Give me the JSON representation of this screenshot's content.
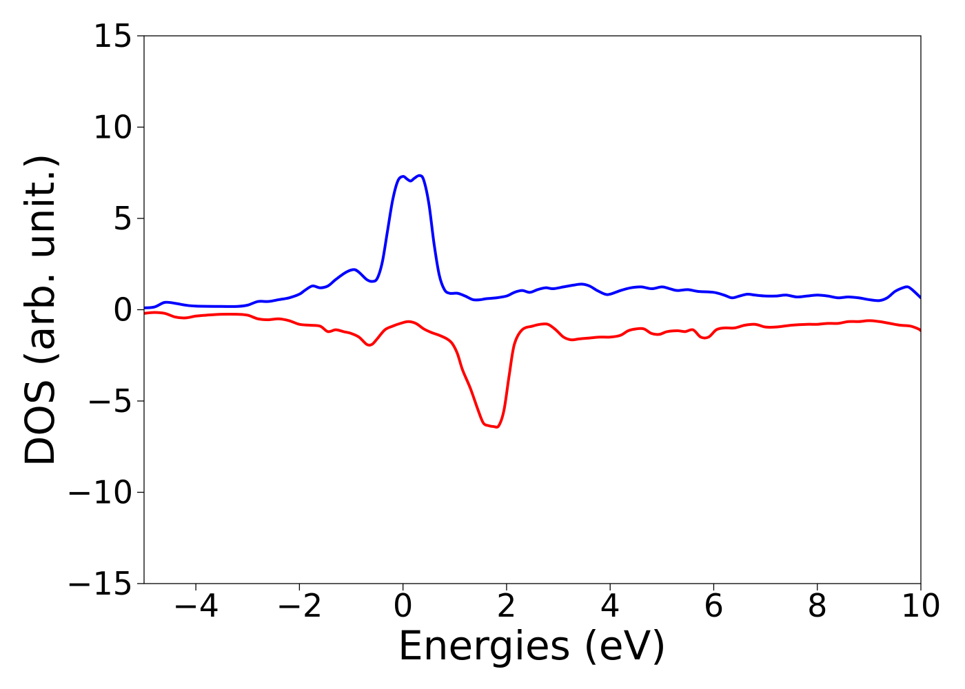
{
  "chart_data": {
    "type": "line",
    "title": "",
    "xlabel": "Energies (eV)",
    "ylabel": "DOS (arb. unit.)",
    "xlim": [
      -5,
      10
    ],
    "ylim": [
      -15,
      15
    ],
    "grid": false,
    "legend": "none",
    "x_ticks": [
      -4,
      -2,
      0,
      2,
      4,
      6,
      8,
      10
    ],
    "y_ticks": [
      -15,
      -10,
      -5,
      0,
      5,
      10,
      15
    ],
    "series": [
      {
        "color": "#0000ff",
        "points": [
          [
            -5.0,
            0.1
          ],
          [
            -4.8,
            0.15
          ],
          [
            -4.6,
            0.4
          ],
          [
            -4.4,
            0.35
          ],
          [
            -4.2,
            0.25
          ],
          [
            -4.0,
            0.2
          ],
          [
            -3.5,
            0.18
          ],
          [
            -3.2,
            0.18
          ],
          [
            -3.0,
            0.25
          ],
          [
            -2.8,
            0.45
          ],
          [
            -2.6,
            0.45
          ],
          [
            -2.4,
            0.55
          ],
          [
            -2.2,
            0.65
          ],
          [
            -2.0,
            0.85
          ],
          [
            -1.9,
            1.05
          ],
          [
            -1.75,
            1.3
          ],
          [
            -1.6,
            1.2
          ],
          [
            -1.45,
            1.3
          ],
          [
            -1.3,
            1.65
          ],
          [
            -1.1,
            2.05
          ],
          [
            -0.95,
            2.2
          ],
          [
            -0.85,
            2.05
          ],
          [
            -0.7,
            1.65
          ],
          [
            -0.6,
            1.55
          ],
          [
            -0.5,
            1.7
          ],
          [
            -0.4,
            2.6
          ],
          [
            -0.3,
            4.3
          ],
          [
            -0.2,
            6.0
          ],
          [
            -0.1,
            7.05
          ],
          [
            0.0,
            7.3
          ],
          [
            0.08,
            7.15
          ],
          [
            0.15,
            7.05
          ],
          [
            0.22,
            7.2
          ],
          [
            0.32,
            7.35
          ],
          [
            0.4,
            7.1
          ],
          [
            0.5,
            5.8
          ],
          [
            0.6,
            3.6
          ],
          [
            0.7,
            1.9
          ],
          [
            0.8,
            1.1
          ],
          [
            0.9,
            0.9
          ],
          [
            1.05,
            0.9
          ],
          [
            1.2,
            0.75
          ],
          [
            1.35,
            0.55
          ],
          [
            1.5,
            0.55
          ],
          [
            1.6,
            0.6
          ],
          [
            1.8,
            0.65
          ],
          [
            2.0,
            0.75
          ],
          [
            2.15,
            0.95
          ],
          [
            2.3,
            1.05
          ],
          [
            2.45,
            0.95
          ],
          [
            2.6,
            1.1
          ],
          [
            2.75,
            1.2
          ],
          [
            2.9,
            1.15
          ],
          [
            3.1,
            1.25
          ],
          [
            3.3,
            1.35
          ],
          [
            3.45,
            1.4
          ],
          [
            3.6,
            1.3
          ],
          [
            3.75,
            1.05
          ],
          [
            3.9,
            0.85
          ],
          [
            4.0,
            0.85
          ],
          [
            4.2,
            1.05
          ],
          [
            4.4,
            1.2
          ],
          [
            4.6,
            1.25
          ],
          [
            4.8,
            1.15
          ],
          [
            5.0,
            1.25
          ],
          [
            5.15,
            1.15
          ],
          [
            5.3,
            1.05
          ],
          [
            5.5,
            1.1
          ],
          [
            5.7,
            1.0
          ],
          [
            6.0,
            0.95
          ],
          [
            6.2,
            0.8
          ],
          [
            6.35,
            0.65
          ],
          [
            6.5,
            0.75
          ],
          [
            6.65,
            0.85
          ],
          [
            6.8,
            0.8
          ],
          [
            7.0,
            0.75
          ],
          [
            7.2,
            0.75
          ],
          [
            7.4,
            0.8
          ],
          [
            7.6,
            0.7
          ],
          [
            7.8,
            0.75
          ],
          [
            8.0,
            0.8
          ],
          [
            8.2,
            0.75
          ],
          [
            8.4,
            0.65
          ],
          [
            8.6,
            0.7
          ],
          [
            8.8,
            0.65
          ],
          [
            9.0,
            0.55
          ],
          [
            9.2,
            0.5
          ],
          [
            9.35,
            0.65
          ],
          [
            9.5,
            1.0
          ],
          [
            9.65,
            1.2
          ],
          [
            9.75,
            1.25
          ],
          [
            9.85,
            1.05
          ],
          [
            10.0,
            0.65
          ]
        ]
      },
      {
        "color": "#ff0000",
        "points": [
          [
            -5.0,
            -0.2
          ],
          [
            -4.8,
            -0.15
          ],
          [
            -4.6,
            -0.2
          ],
          [
            -4.4,
            -0.4
          ],
          [
            -4.2,
            -0.45
          ],
          [
            -4.0,
            -0.35
          ],
          [
            -3.8,
            -0.3
          ],
          [
            -3.5,
            -0.25
          ],
          [
            -3.2,
            -0.25
          ],
          [
            -3.0,
            -0.3
          ],
          [
            -2.8,
            -0.5
          ],
          [
            -2.6,
            -0.55
          ],
          [
            -2.4,
            -0.5
          ],
          [
            -2.2,
            -0.6
          ],
          [
            -2.0,
            -0.8
          ],
          [
            -1.8,
            -0.85
          ],
          [
            -1.6,
            -0.9
          ],
          [
            -1.45,
            -1.2
          ],
          [
            -1.3,
            -1.1
          ],
          [
            -1.15,
            -1.2
          ],
          [
            -1.0,
            -1.3
          ],
          [
            -0.85,
            -1.5
          ],
          [
            -0.7,
            -1.9
          ],
          [
            -0.6,
            -1.9
          ],
          [
            -0.5,
            -1.6
          ],
          [
            -0.35,
            -1.1
          ],
          [
            -0.2,
            -0.9
          ],
          [
            -0.05,
            -0.75
          ],
          [
            0.1,
            -0.65
          ],
          [
            0.25,
            -0.75
          ],
          [
            0.4,
            -1.05
          ],
          [
            0.55,
            -1.25
          ],
          [
            0.7,
            -1.4
          ],
          [
            0.85,
            -1.6
          ],
          [
            0.95,
            -1.85
          ],
          [
            1.05,
            -2.4
          ],
          [
            1.15,
            -3.3
          ],
          [
            1.3,
            -4.3
          ],
          [
            1.45,
            -5.5
          ],
          [
            1.55,
            -6.2
          ],
          [
            1.65,
            -6.35
          ],
          [
            1.75,
            -6.4
          ],
          [
            1.85,
            -6.35
          ],
          [
            1.95,
            -5.5
          ],
          [
            2.05,
            -3.6
          ],
          [
            2.15,
            -1.9
          ],
          [
            2.3,
            -1.1
          ],
          [
            2.5,
            -0.9
          ],
          [
            2.65,
            -0.8
          ],
          [
            2.8,
            -0.8
          ],
          [
            2.95,
            -1.1
          ],
          [
            3.1,
            -1.5
          ],
          [
            3.25,
            -1.65
          ],
          [
            3.4,
            -1.6
          ],
          [
            3.6,
            -1.55
          ],
          [
            3.8,
            -1.5
          ],
          [
            4.0,
            -1.5
          ],
          [
            4.2,
            -1.4
          ],
          [
            4.35,
            -1.15
          ],
          [
            4.5,
            -1.05
          ],
          [
            4.65,
            -1.05
          ],
          [
            4.8,
            -1.3
          ],
          [
            4.95,
            -1.35
          ],
          [
            5.1,
            -1.2
          ],
          [
            5.3,
            -1.15
          ],
          [
            5.45,
            -1.2
          ],
          [
            5.6,
            -1.1
          ],
          [
            5.75,
            -1.5
          ],
          [
            5.9,
            -1.5
          ],
          [
            6.05,
            -1.1
          ],
          [
            6.2,
            -1.0
          ],
          [
            6.4,
            -1.0
          ],
          [
            6.6,
            -0.85
          ],
          [
            6.8,
            -0.8
          ],
          [
            7.0,
            -0.95
          ],
          [
            7.2,
            -0.95
          ],
          [
            7.5,
            -0.85
          ],
          [
            7.8,
            -0.8
          ],
          [
            8.0,
            -0.8
          ],
          [
            8.2,
            -0.75
          ],
          [
            8.4,
            -0.75
          ],
          [
            8.6,
            -0.65
          ],
          [
            8.8,
            -0.65
          ],
          [
            9.0,
            -0.6
          ],
          [
            9.2,
            -0.65
          ],
          [
            9.4,
            -0.75
          ],
          [
            9.6,
            -0.85
          ],
          [
            9.8,
            -0.9
          ],
          [
            9.95,
            -1.05
          ],
          [
            10.0,
            -1.15
          ]
        ]
      }
    ]
  }
}
